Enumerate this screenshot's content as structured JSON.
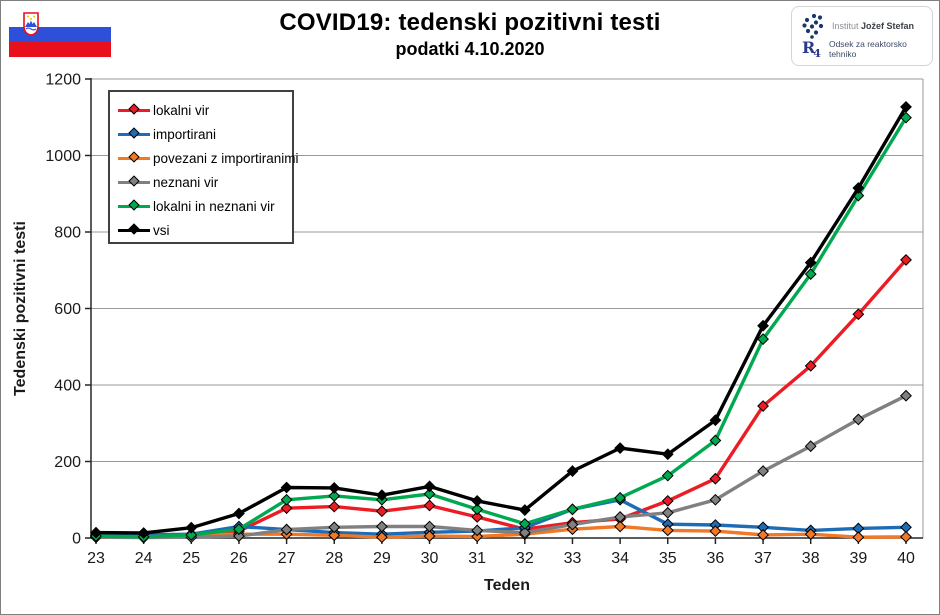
{
  "header": {
    "title": "COVID19: tedenski pozitivni testi",
    "subtitle": "podatki 4.10.2020",
    "ijs_logo": {
      "name_regular": "Institut ",
      "name_bold": "Jožef Stefan"
    },
    "r4_logo": {
      "glyph_main": "R",
      "glyph_sub": "4",
      "label": "Odsek za reaktorsko tehniko"
    },
    "flag": {
      "country": "Slovenia",
      "stripe_colors": [
        "#ffffff",
        "#2e4fd8",
        "#e8101c"
      ]
    }
  },
  "chart_data": {
    "type": "line",
    "title": "COVID19: tedenski pozitivni testi",
    "subtitle": "podatki 4.10.2020",
    "xlabel": "Teden",
    "ylabel": "Tedenski pozitivni testi",
    "x": [
      23,
      24,
      25,
      26,
      27,
      28,
      29,
      30,
      31,
      32,
      33,
      34,
      35,
      36,
      37,
      38,
      39,
      40
    ],
    "ylim": [
      0,
      1200
    ],
    "yticks": [
      0,
      200,
      400,
      600,
      800,
      1000,
      1200
    ],
    "grid": true,
    "marker": "diamond",
    "legend_position": "top-left-inside",
    "series": [
      {
        "name": "lokalni vir",
        "color": "#ec1c24",
        "values": [
          3,
          2,
          6,
          18,
          78,
          82,
          70,
          85,
          55,
          23,
          40,
          50,
          97,
          155,
          345,
          450,
          585,
          727
        ]
      },
      {
        "name": "importirani",
        "color": "#1e6cb5",
        "values": [
          7,
          8,
          10,
          30,
          22,
          14,
          10,
          15,
          18,
          27,
          75,
          100,
          36,
          34,
          28,
          20,
          25,
          28
        ]
      },
      {
        "name": "povezani z importiranimi",
        "color": "#f07826",
        "values": [
          2,
          2,
          8,
          10,
          10,
          7,
          2,
          5,
          4,
          10,
          23,
          30,
          20,
          18,
          8,
          10,
          2,
          3
        ]
      },
      {
        "name": "neznani vir",
        "color": "#808080",
        "values": [
          2,
          1,
          2,
          5,
          22,
          28,
          30,
          30,
          20,
          14,
          35,
          55,
          66,
          100,
          175,
          240,
          310,
          372
        ]
      },
      {
        "name": "lokalni in neznani vir",
        "color": "#00a94f",
        "values": [
          5,
          3,
          8,
          23,
          100,
          110,
          100,
          115,
          75,
          37,
          75,
          105,
          163,
          255,
          520,
          690,
          895,
          1099
        ]
      },
      {
        "name": "vsi",
        "color": "#000000",
        "values": [
          14,
          13,
          27,
          64,
          132,
          131,
          112,
          135,
          97,
          73,
          175,
          235,
          219,
          308,
          555,
          720,
          915,
          1127
        ]
      }
    ]
  }
}
